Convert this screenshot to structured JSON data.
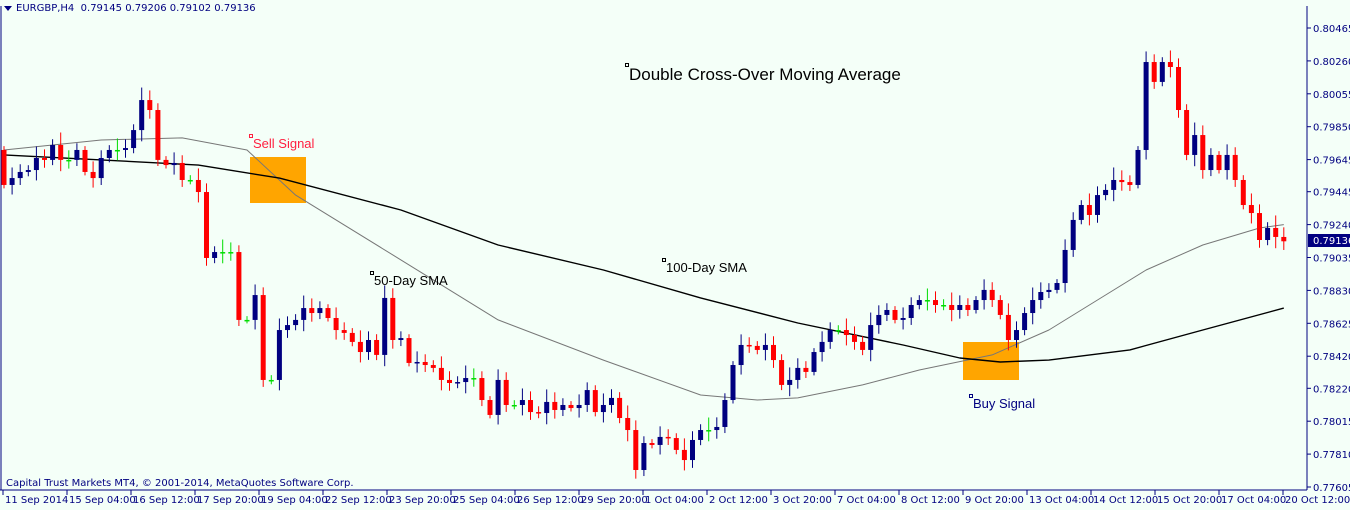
{
  "header": {
    "symbol": "EURGBP,H4",
    "open": "0.79145",
    "high": "0.79206",
    "low": "0.79102",
    "close": "0.79136"
  },
  "copyright": "Capital Trust Markets MT4, © 2001-2014, MetaQuotes Software Corp.",
  "annotations": {
    "title": "Double Cross-Over Moving Average",
    "sell": "Sell Signal",
    "buy": "Buy Signal",
    "sma50": "50-Day SMA",
    "sma100": "100-Day SMA"
  },
  "colors": {
    "bull": "#000080",
    "bear": "#ff0000",
    "doji": "#00dd00",
    "background": "#f4fff8",
    "signal_box": "#ffa500",
    "sma50": "#777777",
    "sma100": "#000000"
  },
  "chart_data": {
    "type": "candlestick",
    "symbol": "EURGBP",
    "timeframe": "H4",
    "current_price": "0.79136",
    "ylim": [
      0.77605,
      0.80465
    ],
    "y_ticks": [
      "0.80465",
      "0.80260",
      "0.80055",
      "0.79850",
      "0.79645",
      "0.79445",
      "0.79240",
      "0.79035",
      "0.78830",
      "0.78625",
      "0.78420",
      "0.78220",
      "0.78015",
      "0.77810",
      "0.77605"
    ],
    "x_ticks": [
      "11 Sep 2014",
      "15 Sep 04:00",
      "16 Sep 12:00",
      "17 Sep 20:00",
      "19 Sep 04:00",
      "22 Sep 12:00",
      "23 Sep 20:00",
      "25 Sep 04:00",
      "26 Sep 12:00",
      "29 Sep 20:00",
      "1 Oct 04:00",
      "2 Oct 12:00",
      "3 Oct 20:00",
      "7 Oct 04:00",
      "8 Oct 12:00",
      "9 Oct 20:00",
      "13 Oct 04:00",
      "14 Oct 12:00",
      "15 Oct 20:00",
      "17 Oct 04:00",
      "20 Oct 12:00"
    ],
    "first_open": 0.79705,
    "closes": [
      0.79487,
      0.7953,
      0.79568,
      0.7958,
      0.79655,
      0.79643,
      0.79736,
      0.79643,
      0.79643,
      0.79705,
      0.79568,
      0.7953,
      0.79655,
      0.79705,
      0.79705,
      0.79717,
      0.79829,
      0.80016,
      0.79954,
      0.79643,
      0.79611,
      0.79624,
      0.79518,
      0.79518,
      0.79443,
      0.79032,
      0.79069,
      0.79069,
      0.79069,
      0.78646,
      0.78646,
      0.78801,
      0.78272,
      0.78272,
      0.78583,
      0.78614,
      0.78646,
      0.7872,
      0.78689,
      0.7872,
      0.78658,
      0.78583,
      0.78565,
      0.78509,
      0.78446,
      0.78521,
      0.78428,
      0.78783,
      0.78521,
      0.78533,
      0.78378,
      0.78384,
      0.78365,
      0.78347,
      0.78272,
      0.78253,
      0.78259,
      0.78284,
      0.78284,
      0.78147,
      0.78054,
      0.78272,
      0.78116,
      0.78116,
      0.78147,
      0.78072,
      0.78066,
      0.78135,
      0.78085,
      0.78116,
      0.78097,
      0.78116,
      0.78209,
      0.78072,
      0.78116,
      0.7816,
      0.78035,
      0.7796,
      0.77711,
      0.77879,
      0.77867,
      0.77917,
      0.7791,
      0.77836,
      0.77773,
      0.77898,
      0.7796,
      0.7796,
      0.77979,
      0.78147,
      0.78365,
      0.7849,
      0.78484,
      0.78459,
      0.7849,
      0.78396,
      0.78241,
      0.78272,
      0.78347,
      0.78322,
      0.78446,
      0.78509,
      0.78583,
      0.78583,
      0.78552,
      0.78509,
      0.78459,
      0.78614,
      0.78677,
      0.78708,
      0.78646,
      0.78658,
      0.78739,
      0.7877,
      0.7877,
      0.78739,
      0.78739,
      0.78708,
      0.78739,
      0.78708,
      0.7877,
      0.78833,
      0.7877,
      0.78677,
      0.78521,
      0.78583,
      0.78689,
      0.7877,
      0.7882,
      0.78833,
      0.78876,
      0.79082,
      0.79269,
      0.79362,
      0.793,
      0.79424,
      0.79456,
      0.79518,
      0.79505,
      0.79487,
      0.79705,
      0.80253,
      0.80129,
      0.80253,
      0.80222,
      0.79954,
      0.79674,
      0.79798,
      0.7958,
      0.79674,
      0.7958,
      0.79674,
      0.79518,
      0.79362,
      0.79312,
      0.79144,
      0.79219,
      0.79163,
      0.79136
    ],
    "wick": 0.0006,
    "series": [
      {
        "name": "50-Day SMA",
        "points": [
          [
            0,
            0.79705
          ],
          [
            12,
            0.79767
          ],
          [
            22,
            0.7978
          ],
          [
            30,
            0.79705
          ],
          [
            36,
            0.79424
          ],
          [
            49,
            0.7902
          ],
          [
            61,
            0.78646
          ],
          [
            74,
            0.78396
          ],
          [
            86,
            0.78178
          ],
          [
            93,
            0.78147
          ],
          [
            98,
            0.7816
          ],
          [
            106,
            0.78241
          ],
          [
            113,
            0.78334
          ],
          [
            122,
            0.78428
          ],
          [
            129,
            0.78583
          ],
          [
            135,
            0.7877
          ],
          [
            141,
            0.78957
          ],
          [
            148,
            0.79113
          ],
          [
            155,
            0.79219
          ],
          [
            158,
            0.7924
          ]
        ]
      },
      {
        "name": "100-Day SMA",
        "points": [
          [
            0,
            0.79674
          ],
          [
            12,
            0.79643
          ],
          [
            24,
            0.79611
          ],
          [
            34,
            0.7953
          ],
          [
            49,
            0.79331
          ],
          [
            61,
            0.79113
          ],
          [
            74,
            0.78957
          ],
          [
            86,
            0.78783
          ],
          [
            98,
            0.78627
          ],
          [
            111,
            0.7849
          ],
          [
            118,
            0.78409
          ],
          [
            123,
            0.78384
          ],
          [
            129,
            0.78396
          ],
          [
            139,
            0.78459
          ],
          [
            148,
            0.78583
          ],
          [
            158,
            0.7872
          ]
        ]
      }
    ],
    "signals": [
      {
        "label": "Sell Signal",
        "bar": 35,
        "price": 0.7958
      },
      {
        "label": "Buy Signal",
        "bar": 121,
        "price": 0.7842
      }
    ],
    "grid": false
  }
}
